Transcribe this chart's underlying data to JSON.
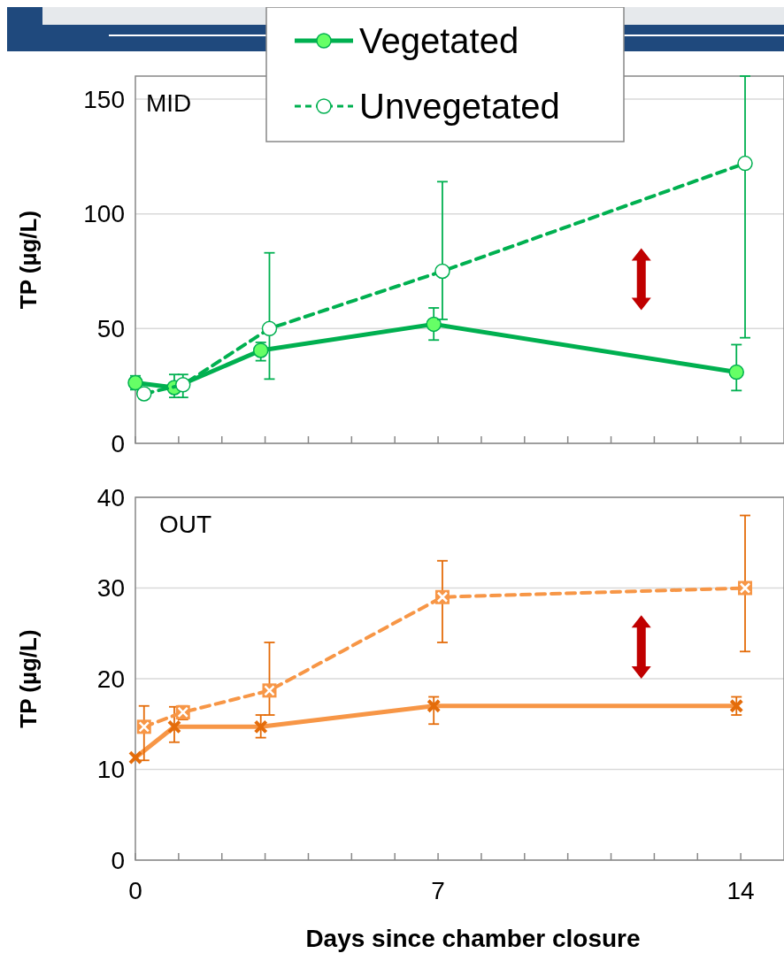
{
  "chart_data": [
    {
      "type": "line",
      "ylabel": "TP (µg/L)",
      "annotations": [
        "MID"
      ],
      "xlim": [
        0,
        15
      ],
      "ylim": [
        0,
        160
      ],
      "yticks": [
        0,
        50,
        100,
        150
      ],
      "xticks": [
        0,
        {
          "value": 1,
          "label": null
        },
        {
          "value": 2,
          "label": null
        },
        {
          "value": 3,
          "label": null
        },
        {
          "value": 4,
          "label": null
        },
        {
          "value": 5,
          "label": null
        },
        {
          "value": 6,
          "label": null
        },
        7,
        {
          "value": 8,
          "label": null
        },
        {
          "value": 9,
          "label": null
        },
        {
          "value": 10,
          "label": null
        },
        {
          "value": 11,
          "label": null
        },
        {
          "value": 12,
          "label": null
        },
        {
          "value": 13,
          "label": null
        },
        14
      ],
      "tick_labels": "y",
      "grid": "y",
      "legend": "top",
      "series": [
        {
          "name": "Vegetated",
          "color": "#00b050",
          "line_style": "solid",
          "marker": "circle",
          "x": [
            0,
            0.9,
            2.9,
            6.9,
            13.9
          ],
          "values": [
            26.4,
            24.3,
            40.5,
            51.9,
            31
          ],
          "errors": [
            3,
            [
              20,
              30
            ],
            [
              36,
              44
            ],
            [
              45,
              59
            ],
            [
              23,
              43
            ]
          ]
        },
        {
          "name": "Unvegetated",
          "color": "#00b050",
          "line_style": "dashed",
          "marker": "circle",
          "x": [
            0.2,
            1.1,
            3.1,
            7.1,
            14.1
          ],
          "values": [
            21.6,
            25.5,
            50,
            75,
            122
          ],
          "errors": [
            null,
            [
              20,
              30
            ],
            [
              28,
              83
            ],
            [
              54,
              114
            ],
            [
              46,
              160
            ]
          ]
        }
      ]
    },
    {
      "type": "line",
      "ylabel": "TP (µg/L)",
      "xlabel": "Days since chamber closure",
      "annotations": [
        "OUT"
      ],
      "xlim": [
        0,
        15
      ],
      "ylim": [
        0,
        40
      ],
      "yticks": [
        0,
        10,
        20,
        30,
        40
      ],
      "xticks": [
        0,
        {
          "value": 1,
          "label": null
        },
        {
          "value": 2,
          "label": null
        },
        {
          "value": 3,
          "label": null
        },
        {
          "value": 4,
          "label": null
        },
        {
          "value": 5,
          "label": null
        },
        {
          "value": 6,
          "label": null
        },
        7,
        {
          "value": 8,
          "label": null
        },
        {
          "value": 9,
          "label": null
        },
        {
          "value": 10,
          "label": null
        },
        {
          "value": 11,
          "label": null
        },
        {
          "value": 12,
          "label": null
        },
        {
          "value": 13,
          "label": null
        },
        14
      ],
      "grid": "y",
      "series": [
        {
          "color": "#f79646",
          "line_style": "solid",
          "marker": "cross",
          "x": [
            0,
            0.9,
            2.9,
            6.9,
            13.9
          ],
          "values": [
            11.3,
            14.7,
            14.7,
            17,
            17
          ],
          "errors": [
            null,
            [
              13,
              16.9
            ],
            [
              13.5,
              16
            ],
            [
              15,
              18
            ],
            [
              16,
              18
            ]
          ]
        },
        {
          "color": "#f79646",
          "line_style": "dashed",
          "marker": "square",
          "x": [
            0.2,
            1.1,
            3.1,
            7.1,
            14.1
          ],
          "values": [
            14.7,
            16.3,
            18.7,
            29,
            30
          ],
          "errors": [
            [
              11,
              17
            ],
            [
              15.5,
              17
            ],
            [
              16,
              24
            ],
            [
              24,
              33
            ],
            [
              23,
              38
            ]
          ]
        }
      ]
    }
  ]
}
